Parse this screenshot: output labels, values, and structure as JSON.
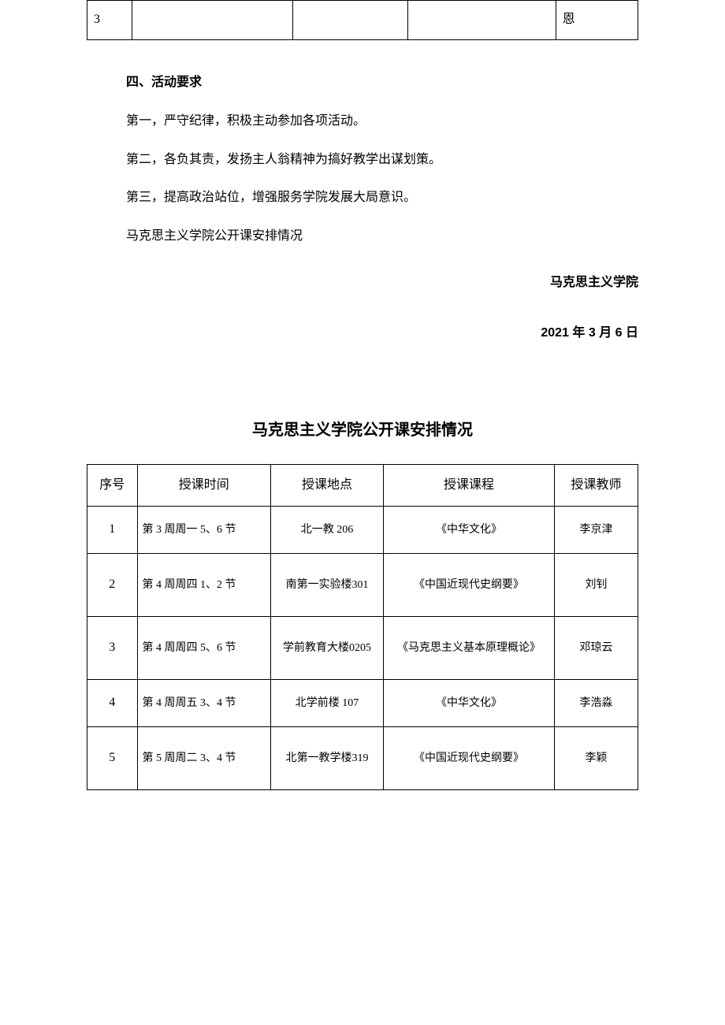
{
  "fragment": {
    "col1": "3",
    "col5": "恩"
  },
  "section4": {
    "heading": "四、活动要求",
    "p1": "第一，严守纪律，积极主动参加各项活动。",
    "p2": "第二，各负其责，发扬主人翁精神为搞好教学出谋划策。",
    "p3": "第三，提高政治站位，增强服务学院发展大局意识。",
    "p4": "马克思主义学院公开课安排情况"
  },
  "signature": {
    "org": "马克思主义学院",
    "date": "2021 年 3 月 6 日"
  },
  "schedule": {
    "title": "马克思主义学院公开课安排情况",
    "headers": {
      "c1": "序号",
      "c2": "授课时间",
      "c3": "授课地点",
      "c4": "授课课程",
      "c5": "授课教师"
    },
    "rows": [
      {
        "num": "1",
        "time": "第 3 周周一 5、6 节",
        "place": "北一教 206",
        "course": "《中华文化》",
        "teacher": "李京津",
        "tall": false
      },
      {
        "num": "2",
        "time": "第 4 周周四 1、2 节",
        "place": "南第一实验楼301",
        "course": "《中国近现代史纲要》",
        "teacher": "刘钊",
        "tall": true
      },
      {
        "num": "3",
        "time": "第 4 周周四 5、6 节",
        "place": "学前教育大楼0205",
        "course": "《马克思主义基本原理概论》",
        "teacher": "邓琼云",
        "tall": true
      },
      {
        "num": "4",
        "time": "第 4 周周五 3、4 节",
        "place": "北学前楼 107",
        "course": "《中华文化》",
        "teacher": "李浩淼",
        "tall": false
      },
      {
        "num": "5",
        "time": "第 5 周周二 3、4 节",
        "place": "北第一教学楼319",
        "course": "《中国近现代史纲要》",
        "teacher": "李颖",
        "tall": true
      }
    ]
  }
}
